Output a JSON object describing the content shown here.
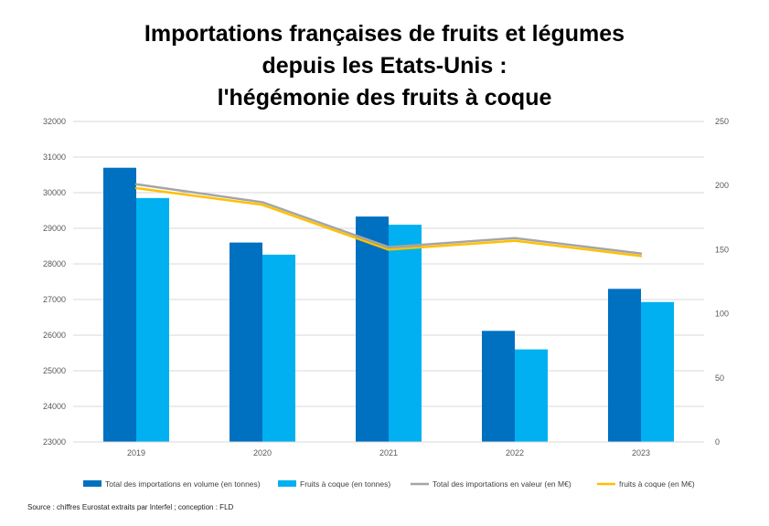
{
  "chart_data": {
    "type": "bar",
    "title_lines": [
      "Importations françaises de fruits et légumes",
      "depuis les Etats-Unis :",
      "l'hégémonie des fruits à coque"
    ],
    "categories": [
      "2019",
      "2020",
      "2021",
      "2022",
      "2023"
    ],
    "y_left": {
      "min": 23000,
      "max": 32000,
      "step": 1000,
      "ticks": [
        "23000",
        "24000",
        "25000",
        "26000",
        "27000",
        "28000",
        "29000",
        "30000",
        "31000",
        "32000"
      ]
    },
    "y_right": {
      "min": 0,
      "max": 250,
      "step": 50,
      "ticks": [
        "0",
        "50",
        "100",
        "150",
        "200",
        "250"
      ]
    },
    "grid": true,
    "legend_position": "bottom",
    "series": [
      {
        "name": "Total des importations en volume (en tonnes)",
        "kind": "bar",
        "axis": "left",
        "color": "#0070C0",
        "values": [
          30700,
          28600,
          29330,
          26120,
          27300
        ]
      },
      {
        "name": "Fruits à coque (en tonnes)",
        "kind": "bar",
        "axis": "left",
        "color": "#00B0F0",
        "values": [
          29850,
          28260,
          29100,
          25600,
          26930
        ]
      },
      {
        "name": "Total des importations en valeur (en M€)",
        "kind": "line",
        "axis": "right",
        "color": "#A5A5A5",
        "values": [
          201,
          187,
          152,
          159,
          147
        ]
      },
      {
        "name": "fruits à coque (en M€)",
        "kind": "line",
        "axis": "right",
        "color": "#FFC000",
        "values": [
          198,
          185,
          150,
          157,
          145
        ]
      }
    ],
    "source": "Source : chiffres Eurostat extraits par Interfel ; conception : FLD"
  }
}
